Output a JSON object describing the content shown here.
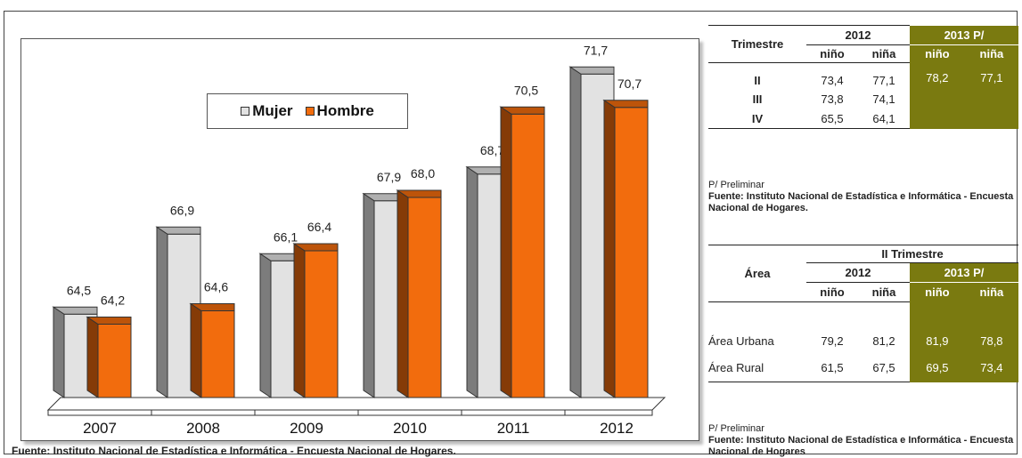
{
  "chart_data": {
    "type": "bar",
    "categories": [
      "2007",
      "2008",
      "2009",
      "2010",
      "2011",
      "2012"
    ],
    "series": [
      {
        "name": "Mujer",
        "values": [
          64.5,
          66.9,
          66.1,
          67.9,
          68.7,
          71.7
        ],
        "labels": [
          "64,5",
          "66,9",
          "66,1",
          "67,9",
          "68,7",
          "71,7"
        ],
        "color": "#e2e2e2"
      },
      {
        "name": "Hombre",
        "values": [
          64.2,
          64.6,
          66.4,
          68.0,
          70.5,
          70.7
        ],
        "labels": [
          "64,2",
          "64,6",
          "66,4",
          "68,0",
          "70,5",
          "70,7"
        ],
        "color": "#f26c0d"
      }
    ],
    "title": "",
    "xlabel": "",
    "ylabel": "",
    "ylim": [
      62,
      72
    ],
    "grid": false,
    "legend_position": "top-center"
  },
  "chart_source": "Fuente: Instituto Nacional de Estadística e Informática - Encuesta Nacional de Hogares.",
  "table1": {
    "row_header": "Trimestre",
    "year_a": "2012",
    "year_b": "2013 P/",
    "cols": [
      "niño",
      "niña",
      "niño",
      "niña"
    ],
    "rows": [
      {
        "label": "II",
        "values": [
          "73,4",
          "77,1",
          "78,2",
          "77,1"
        ]
      },
      {
        "label": "III",
        "values": [
          "73,8",
          "74,1",
          "",
          ""
        ]
      },
      {
        "label": "IV",
        "values": [
          "65,5",
          "64,1",
          "",
          ""
        ]
      }
    ],
    "note": "P/ Preliminar",
    "source": "Fuente: Instituto Nacional de Estadística e Informática - Encuesta Nacional de Hogares."
  },
  "table2": {
    "row_header": "Área",
    "period": "II Trimestre",
    "year_a": "2012",
    "year_b": "2013 P/",
    "cols": [
      "niño",
      "niña",
      "niño",
      "niña"
    ],
    "rows": [
      {
        "label": "Área Urbana",
        "values": [
          "79,2",
          "81,2",
          "81,9",
          "78,8"
        ]
      },
      {
        "label": "Área Rural",
        "values": [
          "61,5",
          "67,5",
          "69,5",
          "73,4"
        ]
      }
    ],
    "note": "P/ Preliminar",
    "source": "Fuente: Instituto Nacional de Estadística e Informática - Encuesta Nacional de Hogares"
  }
}
